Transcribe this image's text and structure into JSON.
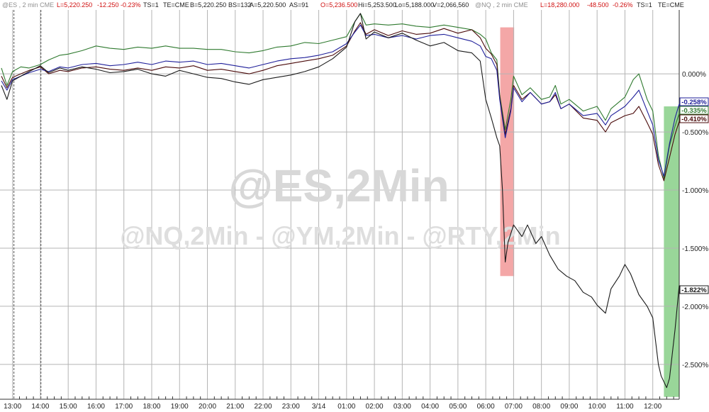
{
  "header": {
    "es": {
      "symbol": "@ES , 2 min  CME",
      "last": "L=5,220.250",
      "change": "-12.250",
      "pct": "-0.23%",
      "ts": "TS=1",
      "te": "TE=CME",
      "bid": "B=5,220.250",
      "bs": "BS=132",
      "ask": "A=5,220.500",
      "as": "AS=91",
      "open": "O=5,236.500",
      "high": "Hi=5,253.500",
      "low": "Lo=5,188.000",
      "vol": "V=2,066,560"
    },
    "nq": {
      "symbol": "@NQ , 2 min  CME",
      "last": "L=18,280.000",
      "change": "-48.500",
      "pct": "-0.26%",
      "ts": "TS=1",
      "te": "TE=CME"
    }
  },
  "watermark": {
    "main": "@ES,2Min",
    "sub": "@NQ,2Min - @YM,2Min - @RTY,2Min"
  },
  "colors": {
    "background": "#ffffff",
    "grid": "#b4b4b4",
    "es": "#4a0a0a",
    "nq": "#1f1f9a",
    "ym": "#2f7a2f",
    "rty": "#1a1a1a",
    "highlight_red": "#f08a8a",
    "highlight_green": "#7fcc7f",
    "header_red": "#d01010",
    "header_gray": "#909090"
  },
  "chart_data": {
    "type": "line",
    "x_unit": "time of day (ET), 3/13 to 3/14",
    "y_unit": "percent change",
    "x_tick_labels": [
      "13:00",
      "14:00",
      "15:00",
      "16:00",
      "17:00",
      "18:00",
      "19:00",
      "20:00",
      "21:00",
      "22:00",
      "23:00",
      "3/14",
      "01:00",
      "02:00",
      "03:00",
      "04:00",
      "05:00",
      "06:00",
      "07:00",
      "08:00",
      "09:00",
      "10:00",
      "11:00",
      "12:00"
    ],
    "x_tick_hours": [
      13,
      14,
      15,
      16,
      17,
      18,
      19,
      20,
      21,
      22,
      23,
      24,
      25,
      26,
      27,
      28,
      29,
      30,
      31,
      32,
      33,
      34,
      35,
      36
    ],
    "y_ticks": [
      "0.000%",
      "-0.500%",
      "-1.000%",
      "-1.500%",
      "-2.000%",
      "-2.500%"
    ],
    "y_tick_values": [
      0,
      -0.5,
      -1.0,
      -1.5,
      -2.0,
      -2.5
    ],
    "ylim": [
      -2.8,
      0.55
    ],
    "xlim": [
      12.55,
      36.95
    ],
    "grid": true,
    "series": [
      {
        "key": "ym",
        "value_label": "-0.335%",
        "points": [
          [
            12.6,
            0.05
          ],
          [
            12.8,
            -0.1
          ],
          [
            13.0,
            0.02
          ],
          [
            13.3,
            0.06
          ],
          [
            13.6,
            0.05
          ],
          [
            14.0,
            0.08
          ],
          [
            14.3,
            0.12
          ],
          [
            14.7,
            0.16
          ],
          [
            15.0,
            0.17
          ],
          [
            15.5,
            0.2
          ],
          [
            16.0,
            0.24
          ],
          [
            16.5,
            0.22
          ],
          [
            17.0,
            0.21
          ],
          [
            17.5,
            0.23
          ],
          [
            18.0,
            0.22
          ],
          [
            18.5,
            0.24
          ],
          [
            19.0,
            0.22
          ],
          [
            19.5,
            0.22
          ],
          [
            20.0,
            0.21
          ],
          [
            20.5,
            0.21
          ],
          [
            21.0,
            0.19
          ],
          [
            21.5,
            0.18
          ],
          [
            22.0,
            0.2
          ],
          [
            22.5,
            0.23
          ],
          [
            23.0,
            0.24
          ],
          [
            23.5,
            0.27
          ],
          [
            24.0,
            0.26
          ],
          [
            24.5,
            0.29
          ],
          [
            25.0,
            0.32
          ],
          [
            25.3,
            0.45
          ],
          [
            25.5,
            0.52
          ],
          [
            25.7,
            0.42
          ],
          [
            26.0,
            0.43
          ],
          [
            26.5,
            0.42
          ],
          [
            27.0,
            0.43
          ],
          [
            27.5,
            0.41
          ],
          [
            28.0,
            0.4
          ],
          [
            28.5,
            0.42
          ],
          [
            29.0,
            0.4
          ],
          [
            29.5,
            0.38
          ],
          [
            29.8,
            0.34
          ],
          [
            30.0,
            0.3
          ],
          [
            30.2,
            0.18
          ],
          [
            30.4,
            0.12
          ],
          [
            30.5,
            -0.18
          ],
          [
            30.7,
            -0.48
          ],
          [
            30.9,
            -0.22
          ],
          [
            31.0,
            -0.02
          ],
          [
            31.3,
            -0.18
          ],
          [
            31.6,
            -0.12
          ],
          [
            32.0,
            -0.22
          ],
          [
            32.3,
            -0.2
          ],
          [
            32.5,
            -0.1
          ],
          [
            32.7,
            -0.26
          ],
          [
            33.0,
            -0.22
          ],
          [
            33.5,
            -0.32
          ],
          [
            34.0,
            -0.28
          ],
          [
            34.3,
            -0.4
          ],
          [
            34.5,
            -0.3
          ],
          [
            35.0,
            -0.2
          ],
          [
            35.3,
            -0.05
          ],
          [
            35.5,
            0.0
          ],
          [
            35.8,
            -0.22
          ],
          [
            36.0,
            -0.32
          ],
          [
            36.2,
            -0.7
          ],
          [
            36.4,
            -0.9
          ],
          [
            36.6,
            -0.62
          ],
          [
            36.8,
            -0.45
          ],
          [
            36.95,
            -0.34
          ]
        ]
      },
      {
        "key": "es",
        "value_label": "-0.410%",
        "points": [
          [
            12.6,
            -0.02
          ],
          [
            12.8,
            -0.12
          ],
          [
            13.0,
            -0.03
          ],
          [
            13.3,
            0.0
          ],
          [
            13.6,
            0.03
          ],
          [
            14.0,
            0.06
          ],
          [
            14.3,
            0.0
          ],
          [
            14.7,
            0.03
          ],
          [
            15.0,
            0.02
          ],
          [
            15.5,
            0.05
          ],
          [
            16.0,
            0.06
          ],
          [
            16.5,
            0.04
          ],
          [
            17.0,
            0.03
          ],
          [
            17.5,
            0.05
          ],
          [
            18.0,
            0.03
          ],
          [
            18.5,
            0.06
          ],
          [
            19.0,
            0.05
          ],
          [
            19.5,
            0.07
          ],
          [
            20.0,
            0.03
          ],
          [
            20.5,
            0.04
          ],
          [
            21.0,
            0.02
          ],
          [
            21.5,
            0.0
          ],
          [
            22.0,
            0.03
          ],
          [
            22.5,
            0.07
          ],
          [
            23.0,
            0.09
          ],
          [
            23.5,
            0.11
          ],
          [
            24.0,
            0.13
          ],
          [
            24.5,
            0.16
          ],
          [
            25.0,
            0.24
          ],
          [
            25.3,
            0.37
          ],
          [
            25.5,
            0.44
          ],
          [
            25.7,
            0.34
          ],
          [
            26.0,
            0.38
          ],
          [
            26.5,
            0.33
          ],
          [
            27.0,
            0.37
          ],
          [
            27.5,
            0.34
          ],
          [
            28.0,
            0.35
          ],
          [
            28.5,
            0.39
          ],
          [
            29.0,
            0.35
          ],
          [
            29.5,
            0.38
          ],
          [
            29.8,
            0.31
          ],
          [
            30.0,
            0.22
          ],
          [
            30.2,
            0.17
          ],
          [
            30.4,
            0.08
          ],
          [
            30.5,
            -0.2
          ],
          [
            30.7,
            -0.52
          ],
          [
            30.9,
            -0.3
          ],
          [
            31.0,
            -0.1
          ],
          [
            31.3,
            -0.22
          ],
          [
            31.6,
            -0.16
          ],
          [
            32.0,
            -0.26
          ],
          [
            32.3,
            -0.24
          ],
          [
            32.5,
            -0.18
          ],
          [
            32.7,
            -0.3
          ],
          [
            33.0,
            -0.26
          ],
          [
            33.5,
            -0.38
          ],
          [
            34.0,
            -0.4
          ],
          [
            34.3,
            -0.5
          ],
          [
            34.5,
            -0.42
          ],
          [
            35.0,
            -0.36
          ],
          [
            35.3,
            -0.34
          ],
          [
            35.5,
            -0.28
          ],
          [
            35.8,
            -0.42
          ],
          [
            36.0,
            -0.52
          ],
          [
            36.2,
            -0.78
          ],
          [
            36.4,
            -0.92
          ],
          [
            36.6,
            -0.72
          ],
          [
            36.8,
            -0.52
          ],
          [
            36.95,
            -0.41
          ]
        ]
      },
      {
        "key": "nq",
        "value_label": "-0.258%",
        "points": [
          [
            12.6,
            -0.06
          ],
          [
            12.8,
            -0.14
          ],
          [
            13.0,
            -0.05
          ],
          [
            13.3,
            -0.02
          ],
          [
            13.6,
            0.01
          ],
          [
            14.0,
            0.04
          ],
          [
            14.3,
            0.02
          ],
          [
            14.7,
            0.06
          ],
          [
            15.0,
            0.05
          ],
          [
            15.5,
            0.08
          ],
          [
            16.0,
            0.09
          ],
          [
            16.5,
            0.07
          ],
          [
            17.0,
            0.08
          ],
          [
            17.5,
            0.1
          ],
          [
            18.0,
            0.08
          ],
          [
            18.5,
            0.11
          ],
          [
            19.0,
            0.1
          ],
          [
            19.5,
            0.11
          ],
          [
            20.0,
            0.08
          ],
          [
            20.5,
            0.09
          ],
          [
            21.0,
            0.07
          ],
          [
            21.5,
            0.05
          ],
          [
            22.0,
            0.08
          ],
          [
            22.5,
            0.11
          ],
          [
            23.0,
            0.13
          ],
          [
            23.5,
            0.14
          ],
          [
            24.0,
            0.16
          ],
          [
            24.5,
            0.19
          ],
          [
            25.0,
            0.26
          ],
          [
            25.3,
            0.36
          ],
          [
            25.5,
            0.42
          ],
          [
            25.7,
            0.33
          ],
          [
            26.0,
            0.34
          ],
          [
            26.5,
            0.31
          ],
          [
            27.0,
            0.33
          ],
          [
            27.5,
            0.3
          ],
          [
            28.0,
            0.33
          ],
          [
            28.5,
            0.34
          ],
          [
            29.0,
            0.31
          ],
          [
            29.5,
            0.28
          ],
          [
            29.8,
            0.24
          ],
          [
            30.0,
            0.15
          ],
          [
            30.2,
            0.13
          ],
          [
            30.4,
            0.03
          ],
          [
            30.5,
            -0.22
          ],
          [
            30.7,
            -0.55
          ],
          [
            30.9,
            -0.32
          ],
          [
            31.0,
            -0.12
          ],
          [
            31.3,
            -0.24
          ],
          [
            31.6,
            -0.16
          ],
          [
            32.0,
            -0.26
          ],
          [
            32.3,
            -0.24
          ],
          [
            32.5,
            -0.16
          ],
          [
            32.7,
            -0.3
          ],
          [
            33.0,
            -0.26
          ],
          [
            33.5,
            -0.36
          ],
          [
            34.0,
            -0.34
          ],
          [
            34.3,
            -0.44
          ],
          [
            34.5,
            -0.36
          ],
          [
            35.0,
            -0.28
          ],
          [
            35.3,
            -0.2
          ],
          [
            35.5,
            -0.14
          ],
          [
            35.8,
            -0.32
          ],
          [
            36.0,
            -0.44
          ],
          [
            36.2,
            -0.74
          ],
          [
            36.4,
            -0.88
          ],
          [
            36.6,
            -0.6
          ],
          [
            36.8,
            -0.38
          ],
          [
            36.95,
            -0.26
          ]
        ]
      },
      {
        "key": "rty",
        "value_label": "-1.822%",
        "points": [
          [
            12.6,
            -0.1
          ],
          [
            12.8,
            -0.22
          ],
          [
            13.0,
            -0.06
          ],
          [
            13.3,
            -0.02
          ],
          [
            13.6,
            0.02
          ],
          [
            14.0,
            0.07
          ],
          [
            14.3,
            0.01
          ],
          [
            14.7,
            0.05
          ],
          [
            15.0,
            0.03
          ],
          [
            15.5,
            0.06
          ],
          [
            16.0,
            0.04
          ],
          [
            16.5,
            0.01
          ],
          [
            17.0,
            0.02
          ],
          [
            17.5,
            0.04
          ],
          [
            18.0,
            0.0
          ],
          [
            18.5,
            -0.02
          ],
          [
            19.0,
            0.03
          ],
          [
            19.5,
            0.0
          ],
          [
            20.0,
            -0.03
          ],
          [
            20.5,
            -0.04
          ],
          [
            21.0,
            -0.07
          ],
          [
            21.5,
            -0.09
          ],
          [
            22.0,
            -0.05
          ],
          [
            22.5,
            -0.03
          ],
          [
            23.0,
            -0.01
          ],
          [
            23.5,
            0.02
          ],
          [
            24.0,
            0.06
          ],
          [
            24.5,
            0.13
          ],
          [
            25.0,
            0.23
          ],
          [
            25.3,
            0.45
          ],
          [
            25.5,
            0.52
          ],
          [
            25.7,
            0.3
          ],
          [
            26.0,
            0.36
          ],
          [
            26.5,
            0.31
          ],
          [
            27.0,
            0.35
          ],
          [
            27.5,
            0.29
          ],
          [
            28.0,
            0.24
          ],
          [
            28.5,
            0.27
          ],
          [
            29.0,
            0.2
          ],
          [
            29.5,
            0.18
          ],
          [
            29.8,
            0.11
          ],
          [
            30.0,
            -0.22
          ],
          [
            30.2,
            -0.38
          ],
          [
            30.4,
            -0.55
          ],
          [
            30.5,
            -0.62
          ],
          [
            30.6,
            -1.0
          ],
          [
            30.7,
            -1.62
          ],
          [
            30.8,
            -1.45
          ],
          [
            31.0,
            -1.3
          ],
          [
            31.3,
            -1.4
          ],
          [
            31.5,
            -1.3
          ],
          [
            31.8,
            -1.46
          ],
          [
            32.0,
            -1.4
          ],
          [
            32.3,
            -1.56
          ],
          [
            32.6,
            -1.68
          ],
          [
            32.9,
            -1.74
          ],
          [
            33.2,
            -1.78
          ],
          [
            33.5,
            -1.88
          ],
          [
            33.8,
            -1.92
          ],
          [
            34.0,
            -1.99
          ],
          [
            34.3,
            -2.06
          ],
          [
            34.5,
            -1.85
          ],
          [
            34.8,
            -1.74
          ],
          [
            35.0,
            -1.64
          ],
          [
            35.2,
            -1.72
          ],
          [
            35.5,
            -1.9
          ],
          [
            35.8,
            -2.0
          ],
          [
            36.0,
            -2.1
          ],
          [
            36.2,
            -2.5
          ],
          [
            36.3,
            -2.6
          ],
          [
            36.5,
            -2.7
          ],
          [
            36.6,
            -2.62
          ],
          [
            36.8,
            -2.2
          ],
          [
            36.95,
            -1.82
          ]
        ]
      }
    ]
  }
}
